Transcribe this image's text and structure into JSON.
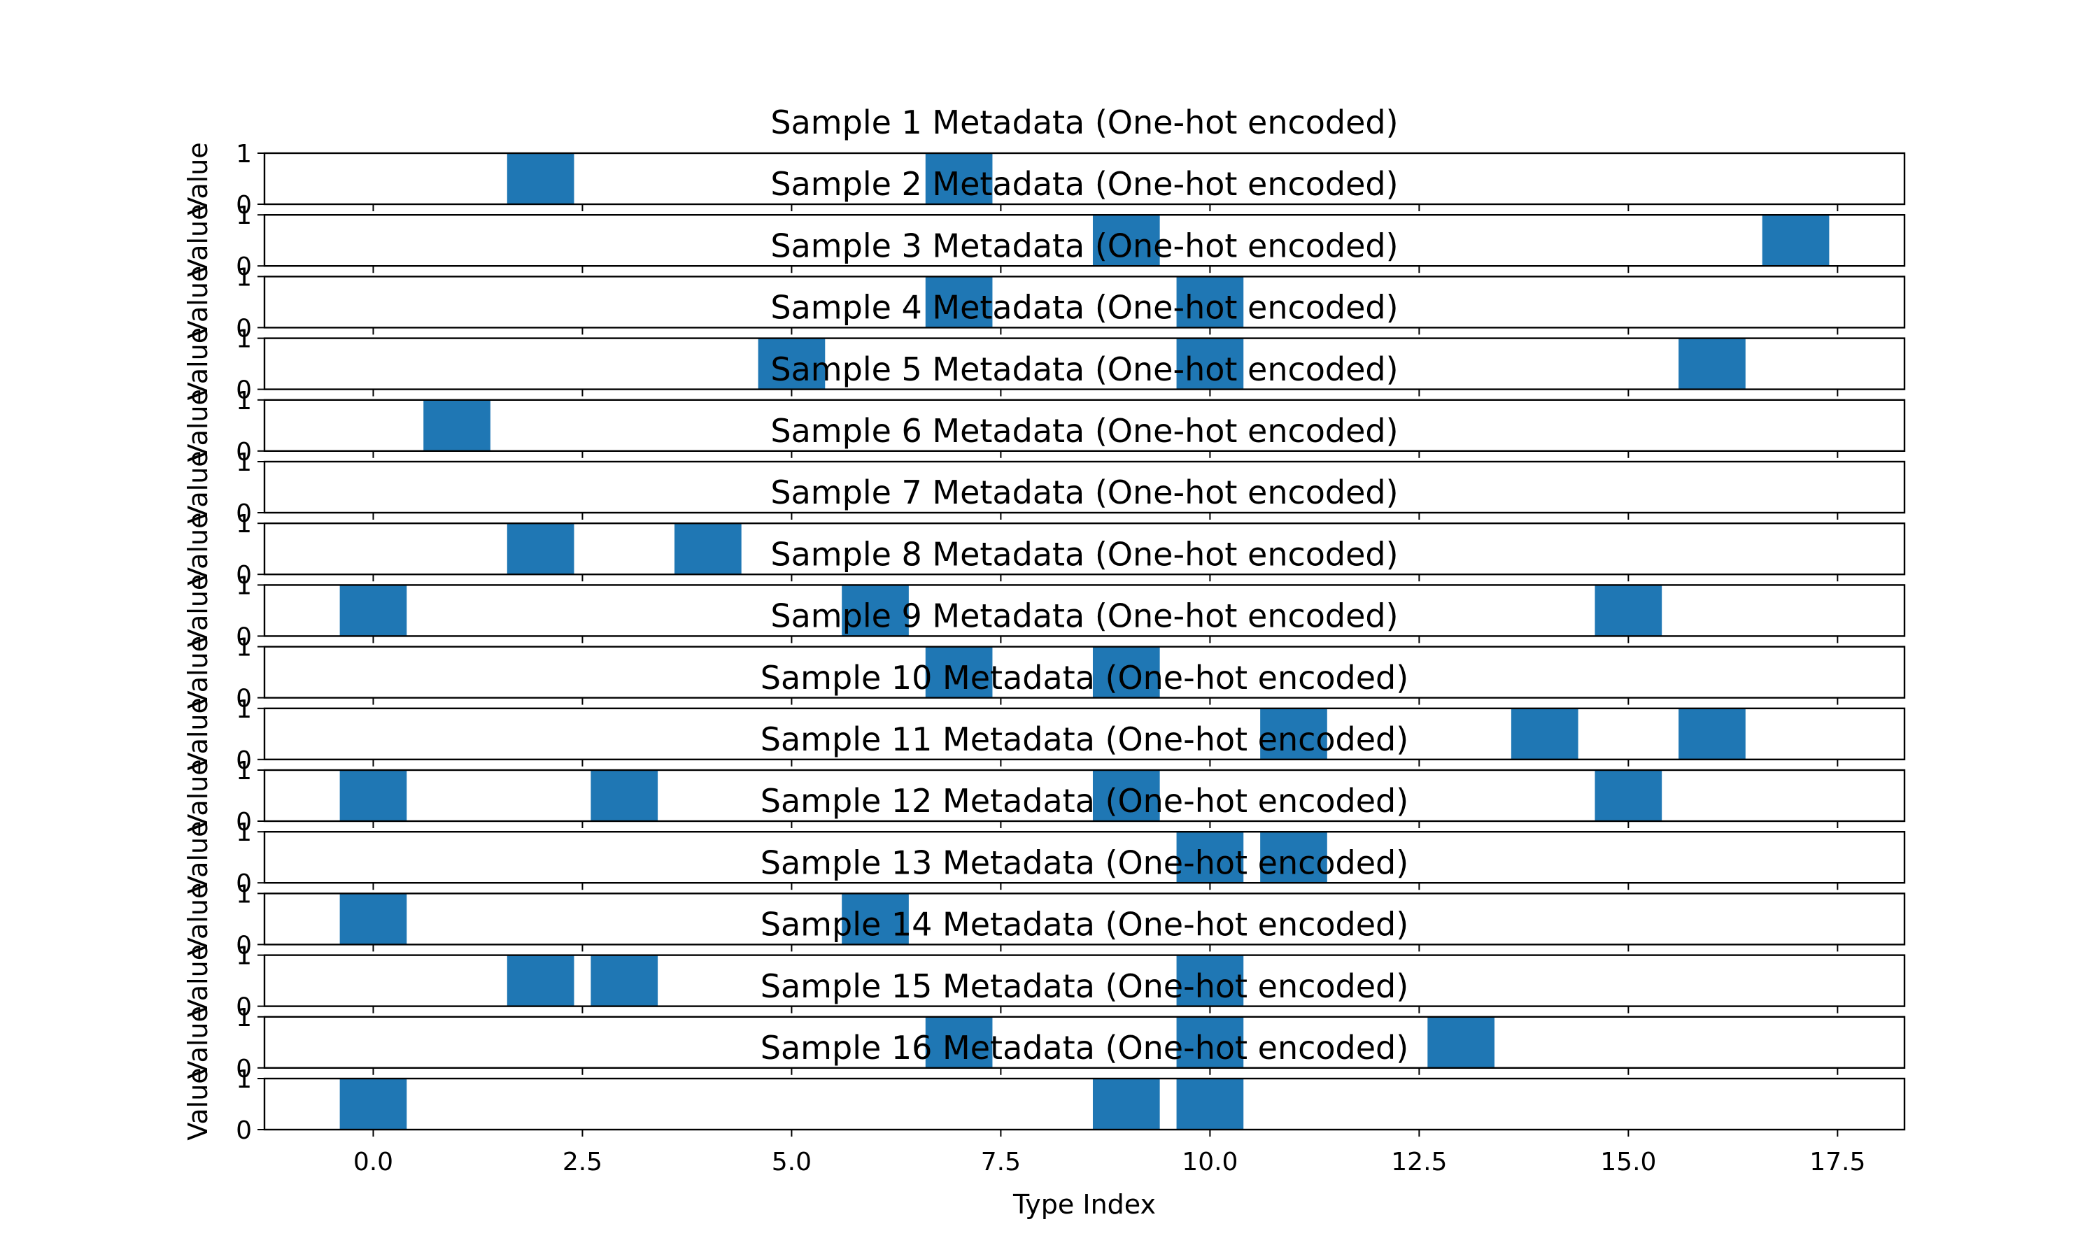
{
  "chart_data": {
    "type": "bar",
    "bar_color": "#1f77b4",
    "xlabel": "Type Index",
    "ylabel": "Value",
    "x_ticks": [
      "0.0",
      "2.5",
      "5.0",
      "7.5",
      "10.0",
      "12.5",
      "15.0",
      "17.5"
    ],
    "y_ticks": [
      "0",
      "1"
    ],
    "xlim": [
      -1.3,
      18.3
    ],
    "ylim": [
      0,
      1
    ],
    "subplots": [
      {
        "title": "Sample 1 Metadata (One-hot encoded)",
        "x": [
          2,
          7
        ]
      },
      {
        "title": "Sample 2 Metadata (One-hot encoded)",
        "x": [
          9,
          17
        ]
      },
      {
        "title": "Sample 3 Metadata (One-hot encoded)",
        "x": [
          7,
          10
        ]
      },
      {
        "title": "Sample 4 Metadata (One-hot encoded)",
        "x": [
          5,
          10,
          16
        ]
      },
      {
        "title": "Sample 5 Metadata (One-hot encoded)",
        "x": [
          1
        ]
      },
      {
        "title": "Sample 6 Metadata (One-hot encoded)",
        "x": []
      },
      {
        "title": "Sample 7 Metadata (One-hot encoded)",
        "x": [
          2,
          4
        ]
      },
      {
        "title": "Sample 8 Metadata (One-hot encoded)",
        "x": [
          0,
          6,
          15
        ]
      },
      {
        "title": "Sample 9 Metadata (One-hot encoded)",
        "x": [
          7,
          9
        ]
      },
      {
        "title": "Sample 10 Metadata (One-hot encoded)",
        "x": [
          11,
          14,
          16
        ]
      },
      {
        "title": "Sample 11 Metadata (One-hot encoded)",
        "x": [
          0,
          3,
          9,
          15
        ]
      },
      {
        "title": "Sample 12 Metadata (One-hot encoded)",
        "x": [
          10,
          11
        ]
      },
      {
        "title": "Sample 13 Metadata (One-hot encoded)",
        "x": [
          0,
          6
        ]
      },
      {
        "title": "Sample 14 Metadata (One-hot encoded)",
        "x": [
          2,
          3,
          10
        ]
      },
      {
        "title": "Sample 15 Metadata (One-hot encoded)",
        "x": [
          7,
          10,
          13
        ]
      },
      {
        "title": "Sample 16 Metadata (One-hot encoded)",
        "x": [
          0,
          9,
          10
        ]
      }
    ]
  }
}
